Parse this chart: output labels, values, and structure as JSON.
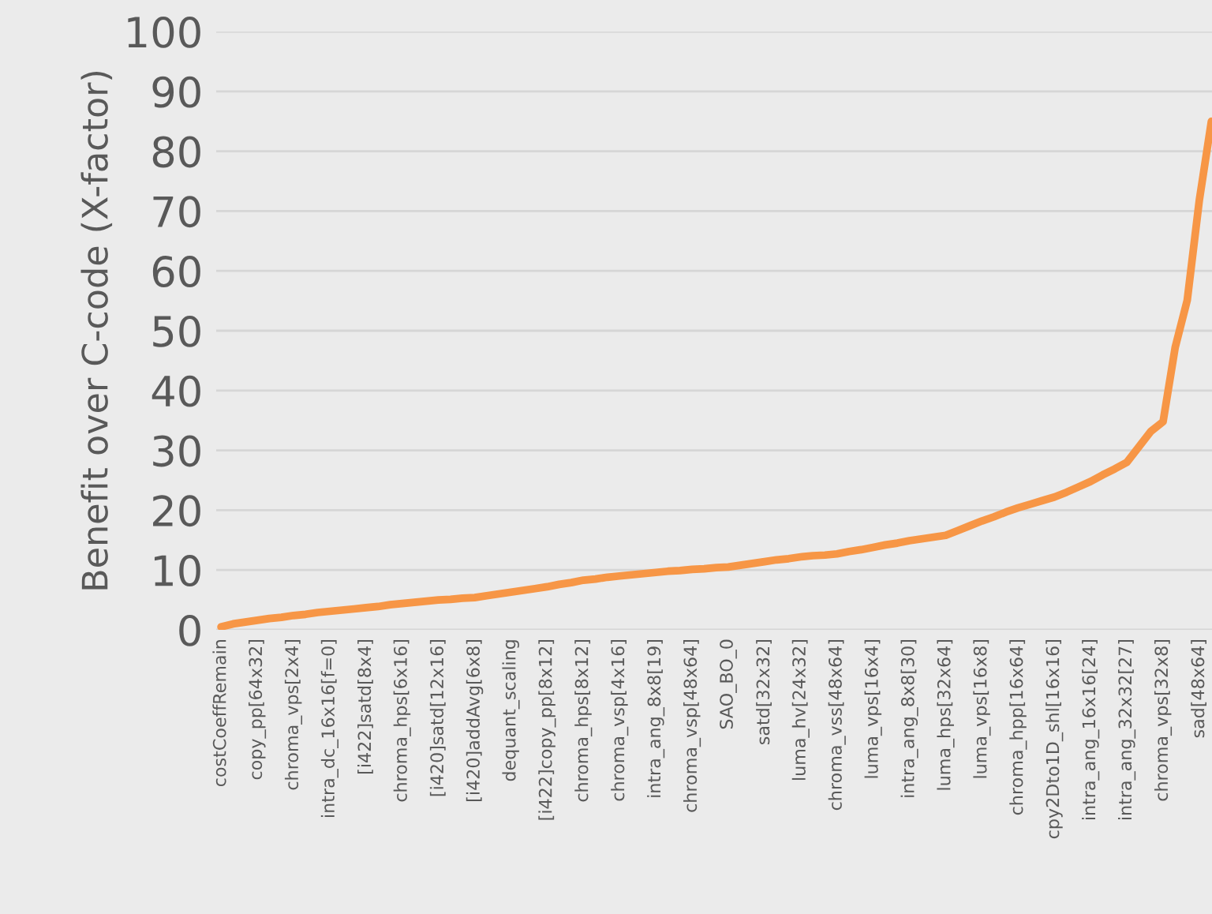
{
  "chart_data": {
    "type": "line",
    "ylabel": "Benefit over C-code (X-factor)",
    "categories": [
      "costCoeffRemain",
      null,
      null,
      "copy_pp[64x32]",
      null,
      null,
      "chroma_vps[2x4]",
      null,
      null,
      "intra_dc_16x16[f=0]",
      null,
      null,
      "[i422]satd[8x4]",
      null,
      null,
      "chroma_hps[6x16]",
      null,
      null,
      "[i420]satd[12x16]",
      null,
      null,
      "[i420]addAvg[6x8]",
      null,
      null,
      "dequant_scaling",
      null,
      null,
      "[i422]copy_pp[8x12]",
      null,
      null,
      "chroma_hps[8x12]",
      null,
      null,
      "chroma_vsp[4x16]",
      null,
      null,
      "intra_ang_8x8[19]",
      null,
      null,
      "chroma_vsp[48x64]",
      null,
      null,
      "SAO_BO_0",
      null,
      null,
      "satd[32x32]",
      null,
      null,
      "luma_hv[24x32]",
      null,
      null,
      "chroma_vss[48x64]",
      null,
      null,
      "luma_vps[16x4]",
      null,
      null,
      "intra_ang_8x8[30]",
      null,
      null,
      "luma_hps[32x64]",
      null,
      null,
      "luma_vps[16x8]",
      null,
      null,
      "chroma_hpp[16x64]",
      null,
      null,
      "cpy2Dto1D_shl[16x16]",
      null,
      null,
      "intra_ang_16x16[24]",
      null,
      null,
      "intra_ang_32x32[27]",
      null,
      null,
      "chroma_vps[32x8]",
      null,
      null,
      "sad[48x64]",
      null
    ],
    "values": [
      0.5,
      1.0,
      1.3,
      1.6,
      1.9,
      2.1,
      2.4,
      2.6,
      2.9,
      3.1,
      3.3,
      3.5,
      3.7,
      3.9,
      4.2,
      4.4,
      4.6,
      4.8,
      5.0,
      5.1,
      5.3,
      5.4,
      5.7,
      6.0,
      6.3,
      6.6,
      6.9,
      7.2,
      7.6,
      7.9,
      8.3,
      8.5,
      8.8,
      9.0,
      9.2,
      9.4,
      9.6,
      9.8,
      9.9,
      10.1,
      10.2,
      10.4,
      10.5,
      10.8,
      11.1,
      11.4,
      11.7,
      11.9,
      12.2,
      12.4,
      12.5,
      12.7,
      13.1,
      13.4,
      13.8,
      14.2,
      14.5,
      14.9,
      15.2,
      15.5,
      15.8,
      16.6,
      17.4,
      18.2,
      18.9,
      19.7,
      20.4,
      21.0,
      21.6,
      22.2,
      23.0,
      23.9,
      24.8,
      25.9,
      26.9,
      28.0,
      30.6,
      33.2,
      34.8,
      47.2,
      55.1,
      71.8,
      85
    ],
    "color": "#f79646",
    "ylim": [
      0,
      100
    ],
    "yticks": [
      0,
      10,
      20,
      30,
      40,
      50,
      60,
      70,
      80,
      90,
      100
    ],
    "grid": "y"
  }
}
